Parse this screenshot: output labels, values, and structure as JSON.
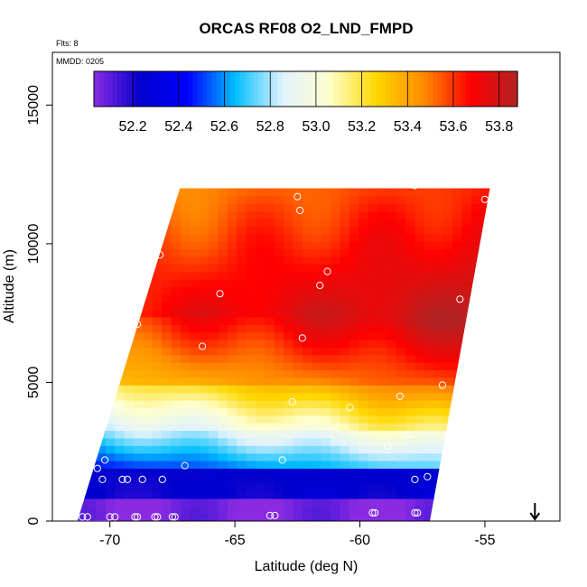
{
  "chart_data": {
    "type": "heatmap",
    "title": "ORCAS RF08 O2_LND_FMPD",
    "annotations": {
      "flights": "Flts: 8",
      "date": "MMDD: 0205"
    },
    "xlabel": "Latitude (deg N)",
    "ylabel": "Altitude (m)",
    "xlim": [
      -72.3,
      -52.0
    ],
    "ylim": [
      0,
      16900
    ],
    "x_ticks": [
      -70,
      -65,
      -60,
      -55
    ],
    "x_tick_labels": [
      "-70",
      "-65",
      "-60",
      "-55"
    ],
    "y_ticks": [
      0,
      5000,
      10000,
      15000
    ],
    "y_tick_labels": [
      "0",
      "5000",
      "10000",
      "15000"
    ],
    "colorbar": {
      "min": 52.03,
      "max": 53.88,
      "ticks": [
        52.2,
        52.4,
        52.6,
        52.8,
        53.0,
        53.2,
        53.4,
        53.6,
        53.8
      ],
      "tick_labels": [
        "52.2",
        "52.4",
        "52.6",
        "52.8",
        "53.0",
        "53.2",
        "53.4",
        "53.6",
        "53.8"
      ],
      "colors": [
        "#8a2be2",
        "#0000cd",
        "#0000ff",
        "#00bfff",
        "#e0f2ff",
        "#ffffcc",
        "#ffd700",
        "#ff8c00",
        "#ff0000",
        "#b22222"
      ]
    },
    "field_region": {
      "latitude_min": -71.3,
      "latitude_max": -54.8,
      "lower_edge_latitude": -71.3,
      "lower_edge_right_latitude": -57.2,
      "upper_edge_left_latitude": -67.2,
      "upper_edge_right_latitude": -54.8,
      "upper_edge_altitude": 12000
    },
    "flight_points": [
      {
        "lat": -71.3,
        "alt": 1400
      },
      {
        "lat": -71.1,
        "alt": 150
      },
      {
        "lat": -70.9,
        "alt": 150
      },
      {
        "lat": -70.5,
        "alt": 1900
      },
      {
        "lat": -70.3,
        "alt": 1500
      },
      {
        "lat": -70.2,
        "alt": 2200
      },
      {
        "lat": -70.1,
        "alt": 4100
      },
      {
        "lat": -69.9,
        "alt": 4100
      },
      {
        "lat": -70.0,
        "alt": 150
      },
      {
        "lat": -69.8,
        "alt": 150
      },
      {
        "lat": -69.6,
        "alt": 4100
      },
      {
        "lat": -69.5,
        "alt": 1500
      },
      {
        "lat": -69.3,
        "alt": 1500
      },
      {
        "lat": -69.0,
        "alt": 150
      },
      {
        "lat": -68.9,
        "alt": 150
      },
      {
        "lat": -68.7,
        "alt": 1500
      },
      {
        "lat": -68.2,
        "alt": 150
      },
      {
        "lat": -68.1,
        "alt": 150
      },
      {
        "lat": -67.9,
        "alt": 1500
      },
      {
        "lat": -67.5,
        "alt": 150
      },
      {
        "lat": -67.4,
        "alt": 150
      },
      {
        "lat": -67.0,
        "alt": 2000
      },
      {
        "lat": -68.9,
        "alt": 7100
      },
      {
        "lat": -68.0,
        "alt": 9600
      },
      {
        "lat": -67.8,
        "alt": 10700
      },
      {
        "lat": -66.3,
        "alt": 6300
      },
      {
        "lat": -65.6,
        "alt": 8200
      },
      {
        "lat": -63.6,
        "alt": 200
      },
      {
        "lat": -63.4,
        "alt": 200
      },
      {
        "lat": -63.1,
        "alt": 2200
      },
      {
        "lat": -62.7,
        "alt": 4300
      },
      {
        "lat": -62.3,
        "alt": 6600
      },
      {
        "lat": -62.4,
        "alt": 11200
      },
      {
        "lat": -62.5,
        "alt": 11700
      },
      {
        "lat": -61.6,
        "alt": 8500
      },
      {
        "lat": -61.3,
        "alt": 9000
      },
      {
        "lat": -60.4,
        "alt": 4100
      },
      {
        "lat": -59.5,
        "alt": 300
      },
      {
        "lat": -59.4,
        "alt": 300
      },
      {
        "lat": -58.9,
        "alt": 2700
      },
      {
        "lat": -58.4,
        "alt": 4500
      },
      {
        "lat": -58.1,
        "alt": 3100
      },
      {
        "lat": -57.8,
        "alt": 12100
      },
      {
        "lat": -57.8,
        "alt": 300
      },
      {
        "lat": -57.7,
        "alt": 300
      },
      {
        "lat": -57.3,
        "alt": 1600
      },
      {
        "lat": -57.8,
        "alt": 1500
      },
      {
        "lat": -56.7,
        "alt": 4900
      },
      {
        "lat": -56.0,
        "alt": 8000
      },
      {
        "lat": -55.0,
        "alt": 11600
      }
    ],
    "wind_arrow_latitude": -53.0
  }
}
